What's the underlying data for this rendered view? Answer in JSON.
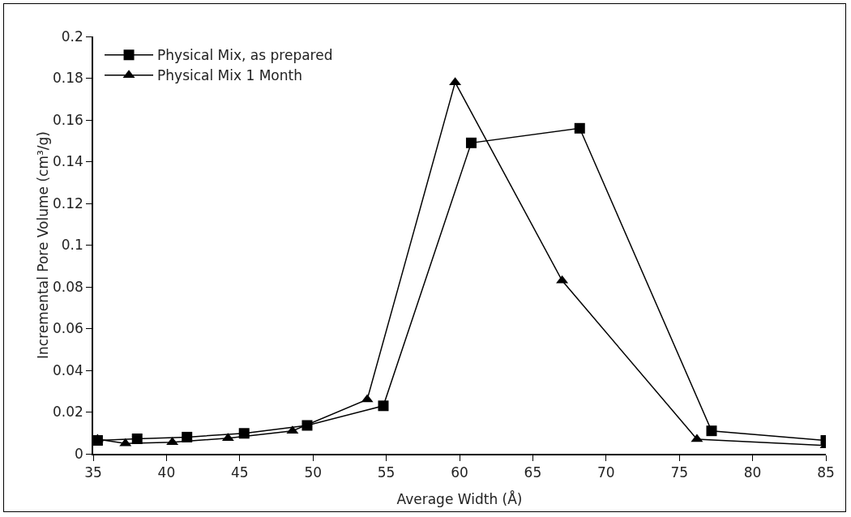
{
  "chart_data": {
    "type": "line",
    "xlabel": "Average Width (Å)",
    "ylabel": "Incremental Pore Volume (cm³/g)",
    "xlim": [
      35,
      85
    ],
    "xticks": [
      35,
      40,
      45,
      50,
      55,
      60,
      65,
      70,
      75,
      80,
      85
    ],
    "ylim": [
      0,
      0.2
    ],
    "yticks": [
      0,
      0.02,
      0.04,
      0.06,
      0.08,
      0.1,
      0.12,
      0.14,
      0.16,
      0.18,
      0.2
    ],
    "grid": false,
    "legend": "top left",
    "line_style": "solid",
    "series": [
      {
        "name": "Physical Mix, as prepared",
        "color": "#000000",
        "marker": "square",
        "x": [
          35.3,
          38.0,
          41.4,
          45.3,
          49.6,
          54.8,
          60.8,
          68.2,
          77.2,
          85
        ],
        "values": [
          0.0064,
          0.0072,
          0.008,
          0.0098,
          0.0136,
          0.023,
          0.149,
          0.156,
          0.011,
          0.0064
        ]
      },
      {
        "name": "Physical Mix 1 Month",
        "color": "#000000",
        "marker": "triangle",
        "x": [
          35.3,
          37.2,
          40.4,
          44.2,
          48.6,
          53.7,
          59.7,
          67.0,
          76.2,
          85
        ],
        "values": [
          0.007,
          0.005,
          0.0055,
          0.0075,
          0.011,
          0.026,
          0.178,
          0.083,
          0.007,
          0.004
        ]
      }
    ]
  }
}
